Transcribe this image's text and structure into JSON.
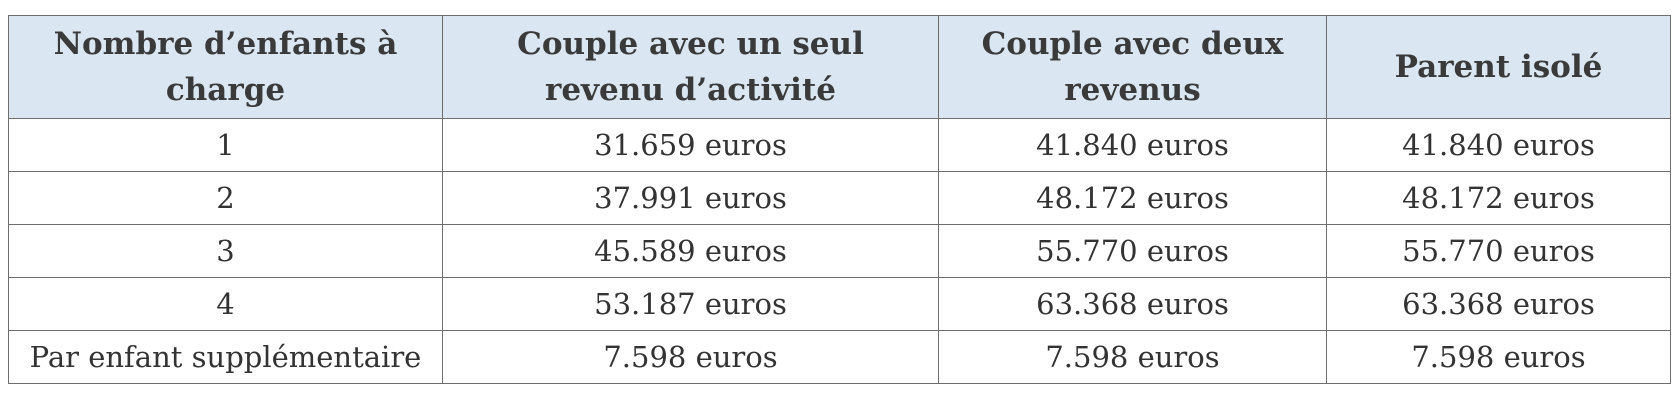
{
  "table": {
    "headers": [
      "Nombre d’enfants à charge",
      "Couple avec un seul revenu d’activité",
      "Couple avec deux revenus",
      "Parent isolé"
    ],
    "rows": [
      [
        "1",
        "31.659 euros",
        "41.840 euros",
        "41.840 euros"
      ],
      [
        "2",
        "37.991 euros",
        "48.172 euros",
        "48.172 euros"
      ],
      [
        "3",
        "45.589 euros",
        "55.770 euros",
        "55.770 euros"
      ],
      [
        "4",
        "53.187 euros",
        "63.368 euros",
        "63.368 euros"
      ],
      [
        "Par enfant supplémentaire",
        "7.598 euros",
        "7.598 euros",
        "7.598 euros"
      ]
    ]
  },
  "colors": {
    "header_background": "#dae6f1",
    "border": "#6e6e6e",
    "text": "#333333"
  }
}
